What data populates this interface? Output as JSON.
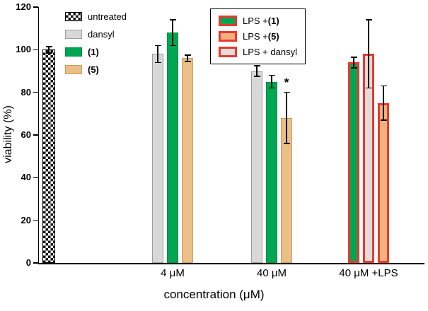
{
  "chart_data": {
    "type": "bar",
    "title": "",
    "xlabel": "concentration (μM)",
    "ylabel": "viability (%)",
    "ylim": [
      0,
      120
    ],
    "yticks": [
      0,
      20,
      40,
      60,
      80,
      100,
      120
    ],
    "grid": false,
    "legend_left": [
      {
        "series": "untreated",
        "text": "untreated",
        "bold": ""
      },
      {
        "series": "dansyl",
        "text": "dansyl",
        "bold": ""
      },
      {
        "series": "cpd1",
        "text": "",
        "bold": "(1)"
      },
      {
        "series": "cpd5",
        "text": "",
        "bold": "(5)"
      }
    ],
    "legend_right": [
      {
        "series": "lps_cpd1",
        "text": "LPS +",
        "bold": "(1)"
      },
      {
        "series": "lps_cpd5",
        "text": "LPS +",
        "bold": "(5)"
      },
      {
        "series": "lps_dansyl",
        "text": "LPS + dansyl",
        "bold": ""
      }
    ],
    "series_styles": {
      "untreated": {
        "fill": "checker",
        "border": "#000000",
        "border_w": 1
      },
      "dansyl": {
        "fill": "#d8d8d8",
        "border": "#9d9d9d",
        "border_w": 1
      },
      "cpd1": {
        "fill": "#00a651",
        "border": "#008c44",
        "border_w": 1
      },
      "cpd5": {
        "fill": "#ecbf87",
        "border": "#c59b62",
        "border_w": 1
      },
      "lps_cpd1": {
        "fill": "#00a651",
        "border": "#e8392f",
        "border_w": 3
      },
      "lps_cpd5": {
        "fill": "#f2b27c",
        "border": "#e8392f",
        "border_w": 3
      },
      "lps_dansyl": {
        "fill": "#e7dbd9",
        "border": "#e8392f",
        "border_w": 3
      }
    },
    "groups": [
      {
        "label": "",
        "bars": [
          {
            "series": "untreated",
            "value": 100,
            "err": 1.5,
            "sig": ""
          }
        ]
      },
      {
        "label": "4 μM",
        "bars": [
          {
            "series": "dansyl",
            "value": 98,
            "err": 4,
            "sig": ""
          },
          {
            "series": "cpd1",
            "value": 108,
            "err": 6,
            "sig": ""
          },
          {
            "series": "cpd5",
            "value": 96,
            "err": 1.5,
            "sig": ""
          }
        ]
      },
      {
        "label": "40 μM",
        "bars": [
          {
            "series": "dansyl",
            "value": 90,
            "err": 2.5,
            "sig": ""
          },
          {
            "series": "cpd1",
            "value": 85,
            "err": 3,
            "sig": ""
          },
          {
            "series": "cpd5",
            "value": 68,
            "err": 12,
            "sig": "*"
          }
        ]
      },
      {
        "label": "40 μM +LPS",
        "bars": [
          {
            "series": "lps_cpd1",
            "value": 94,
            "err": 2.5,
            "sig": ""
          },
          {
            "series": "lps_dansyl",
            "value": 98,
            "err": 16,
            "sig": ""
          },
          {
            "series": "lps_cpd5",
            "value": 75,
            "err": 8,
            "sig": ""
          }
        ]
      }
    ]
  }
}
